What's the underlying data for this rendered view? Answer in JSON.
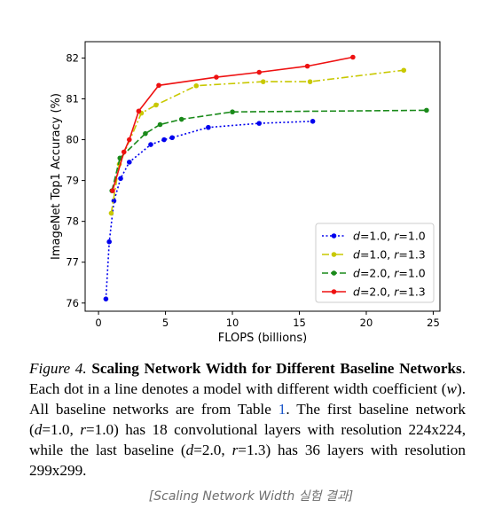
{
  "chart_data": {
    "type": "line",
    "xlabel": "FLOPS (billions)",
    "ylabel": "ImageNet Top1 Accuracy (%)",
    "xlim": [
      -1,
      25.5
    ],
    "ylim": [
      75.8,
      82.4
    ],
    "xticks": [
      "0",
      "5",
      "10",
      "15",
      "20",
      "25"
    ],
    "yticks": [
      "76",
      "77",
      "78",
      "79",
      "80",
      "81",
      "82"
    ],
    "legend_position": "lower-right",
    "grid": false,
    "series": [
      {
        "legend_parts": [
          "d",
          "=1.0, ",
          "r",
          "=1.0"
        ],
        "color": "#0000ee",
        "style": "dotted",
        "points": [
          [
            0.55,
            76.1
          ],
          [
            0.8,
            77.5
          ],
          [
            1.15,
            78.5
          ],
          [
            1.65,
            79.05
          ],
          [
            2.3,
            79.45
          ],
          [
            3.9,
            79.88
          ],
          [
            4.9,
            80.0
          ],
          [
            5.5,
            80.05
          ],
          [
            8.2,
            80.3
          ],
          [
            12.0,
            80.4
          ],
          [
            16.0,
            80.45
          ]
        ]
      },
      {
        "legend_parts": [
          "d",
          "=1.0, ",
          "r",
          "=1.3"
        ],
        "color": "#c8c800",
        "style": "dashdot",
        "points": [
          [
            0.95,
            78.2
          ],
          [
            1.55,
            79.4
          ],
          [
            3.2,
            80.65
          ],
          [
            4.3,
            80.85
          ],
          [
            7.3,
            81.32
          ],
          [
            12.3,
            81.42
          ],
          [
            15.8,
            81.42
          ],
          [
            22.8,
            81.7
          ]
        ]
      },
      {
        "legend_parts": [
          "d",
          "=2.0, ",
          "r",
          "=1.0"
        ],
        "color": "#1a8a1a",
        "style": "dashed",
        "points": [
          [
            1.0,
            78.75
          ],
          [
            1.6,
            79.55
          ],
          [
            3.5,
            80.15
          ],
          [
            4.6,
            80.37
          ],
          [
            6.2,
            80.5
          ],
          [
            10.0,
            80.68
          ],
          [
            24.5,
            80.72
          ]
        ]
      },
      {
        "legend_parts": [
          "d",
          "=2.0, ",
          "r",
          "=1.3"
        ],
        "color": "#ee1111",
        "style": "solid",
        "points": [
          [
            1.05,
            78.75
          ],
          [
            1.9,
            79.7
          ],
          [
            2.3,
            80.0
          ],
          [
            3.0,
            80.7
          ],
          [
            4.5,
            81.33
          ],
          [
            8.8,
            81.53
          ],
          [
            12.0,
            81.65
          ],
          [
            15.6,
            81.8
          ],
          [
            19.0,
            82.02
          ]
        ]
      }
    ]
  },
  "caption": {
    "figure_label": "Figure 4.",
    "title": "Scaling Network Width for Different Baseline Networks",
    "sentence1_start": ". Each dot in a line denotes a model with different width coefficient (",
    "w": "w",
    "sentence1_end": "). All baseline networks are from Table ",
    "table_ref": "1",
    "sentence2_start": ". The first baseline network (",
    "d": "d",
    "eq1": "=1.0, ",
    "r": "r",
    "eq2": "=1.0) has 18 convolutional layers with resolution 224x224, while the last baseline (",
    "eq3": "=2.0, ",
    "eq4": "=1.3) has 36 layers with resolution 299x299."
  },
  "subcaption": "[Scaling Network Width 실험 결과]"
}
